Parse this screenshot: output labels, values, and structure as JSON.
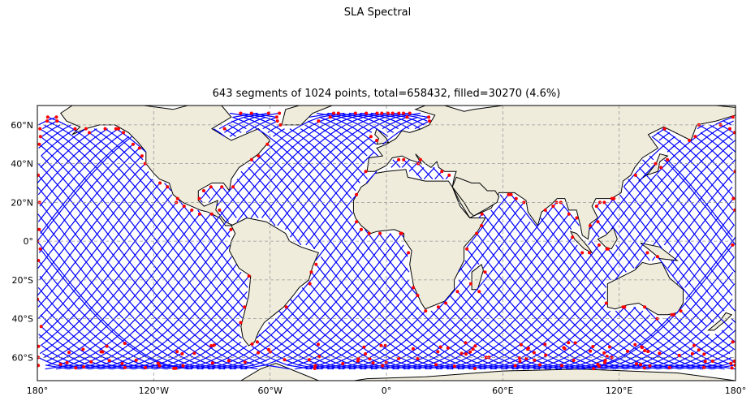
{
  "figure": {
    "suptitle": "SLA Spectral",
    "title": "643 segments of 1024 points, total=658432, filled=30270 (4.6%)"
  },
  "map": {
    "projection": "PlateCarree",
    "extent": {
      "lon": [
        -180,
        180
      ],
      "lat": [
        -72,
        70
      ]
    },
    "land_color": "#efecdc",
    "ocean_color": "#ffffff",
    "coast_color": "#000000",
    "grid": true,
    "x_ticks": [
      {
        "lon": -180,
        "label": "180°"
      },
      {
        "lon": -120,
        "label": "120°W"
      },
      {
        "lon": -60,
        "label": "60°W"
      },
      {
        "lon": 0,
        "label": "0°"
      },
      {
        "lon": 60,
        "label": "60°E"
      },
      {
        "lon": 120,
        "label": "120°E"
      },
      {
        "lon": 180,
        "label": "180°"
      }
    ],
    "y_ticks": [
      {
        "lat": 60,
        "label": "60°N"
      },
      {
        "lat": 40,
        "label": "40°N"
      },
      {
        "lat": 20,
        "label": "20°N"
      },
      {
        "lat": 0,
        "label": "0°"
      },
      {
        "lat": -20,
        "label": "20°S"
      },
      {
        "lat": -40,
        "label": "40°S"
      },
      {
        "lat": -60,
        "label": "60°S"
      }
    ],
    "track_color": "#0000ff",
    "filled_color": "#ff0000"
  },
  "chart_data": {
    "type": "map",
    "title": "643 segments of 1024 points, total=658432, filled=30270 (4.6%)",
    "segments": 643,
    "points_per_segment": 1024,
    "total": 658432,
    "filled": 30270,
    "filled_pct": 4.6,
    "series": [
      {
        "name": "",
        "color": "#0000ff"
      },
      {
        "name": "",
        "color": "#ff0000"
      }
    ]
  }
}
